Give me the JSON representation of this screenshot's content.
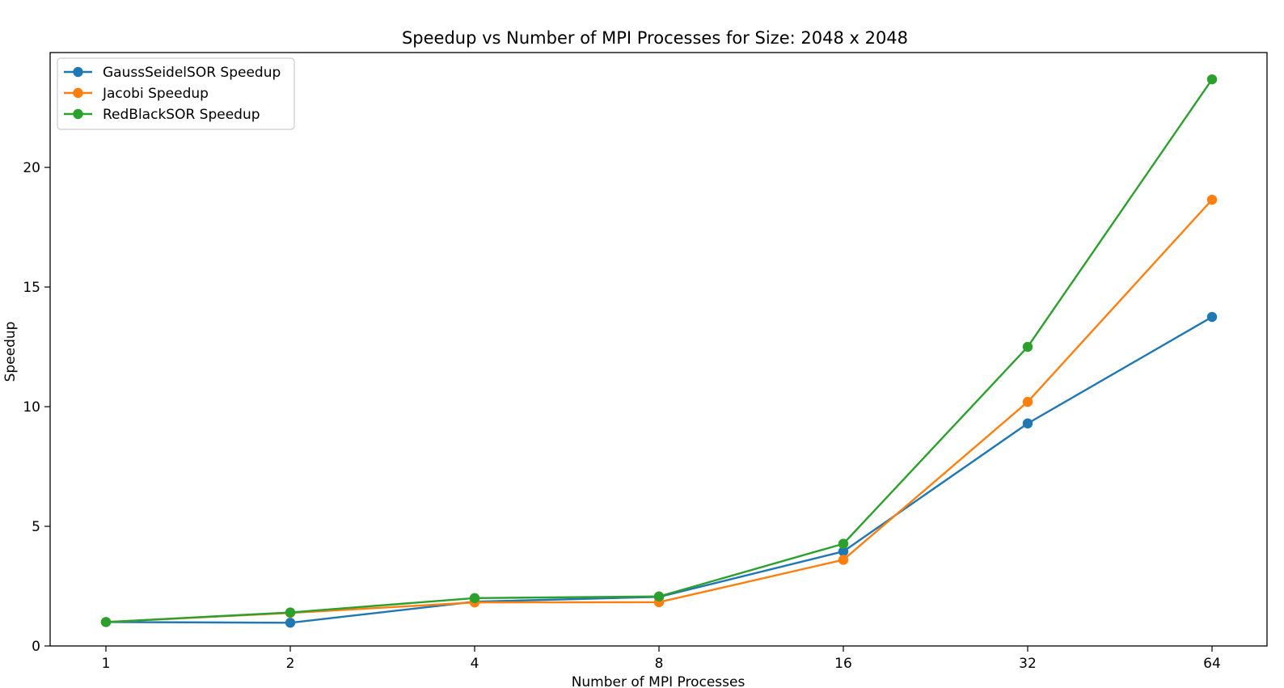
{
  "chart_data": {
    "type": "line",
    "title": "Speedup vs Number of MPI Processes for Size: 2048 x 2048",
    "xlabel": "Number of MPI Processes",
    "ylabel": "Speedup",
    "x_scale": "log2",
    "x": [
      1,
      2,
      4,
      8,
      16,
      32,
      64
    ],
    "x_tick_labels": [
      "1",
      "2",
      "4",
      "8",
      "16",
      "32",
      "64"
    ],
    "ylim": [
      0,
      24.8
    ],
    "y_ticks": [
      0,
      5,
      10,
      15,
      20
    ],
    "y_tick_labels": [
      "0",
      "5",
      "10",
      "15",
      "20"
    ],
    "grid": false,
    "legend_position": "top-left",
    "marker": "circle",
    "series": [
      {
        "name": "GaussSeidelSOR Speedup",
        "color": "#1f77b4",
        "values": [
          1.0,
          0.97,
          1.85,
          2.05,
          3.95,
          9.3,
          13.75
        ]
      },
      {
        "name": "Jacobi Speedup",
        "color": "#ff7f0e",
        "values": [
          1.0,
          1.38,
          1.82,
          1.83,
          3.6,
          10.2,
          18.65
        ]
      },
      {
        "name": "RedBlackSOR Speedup",
        "color": "#2ca02c",
        "values": [
          1.0,
          1.4,
          2.0,
          2.07,
          4.27,
          12.5,
          23.68
        ]
      }
    ]
  }
}
